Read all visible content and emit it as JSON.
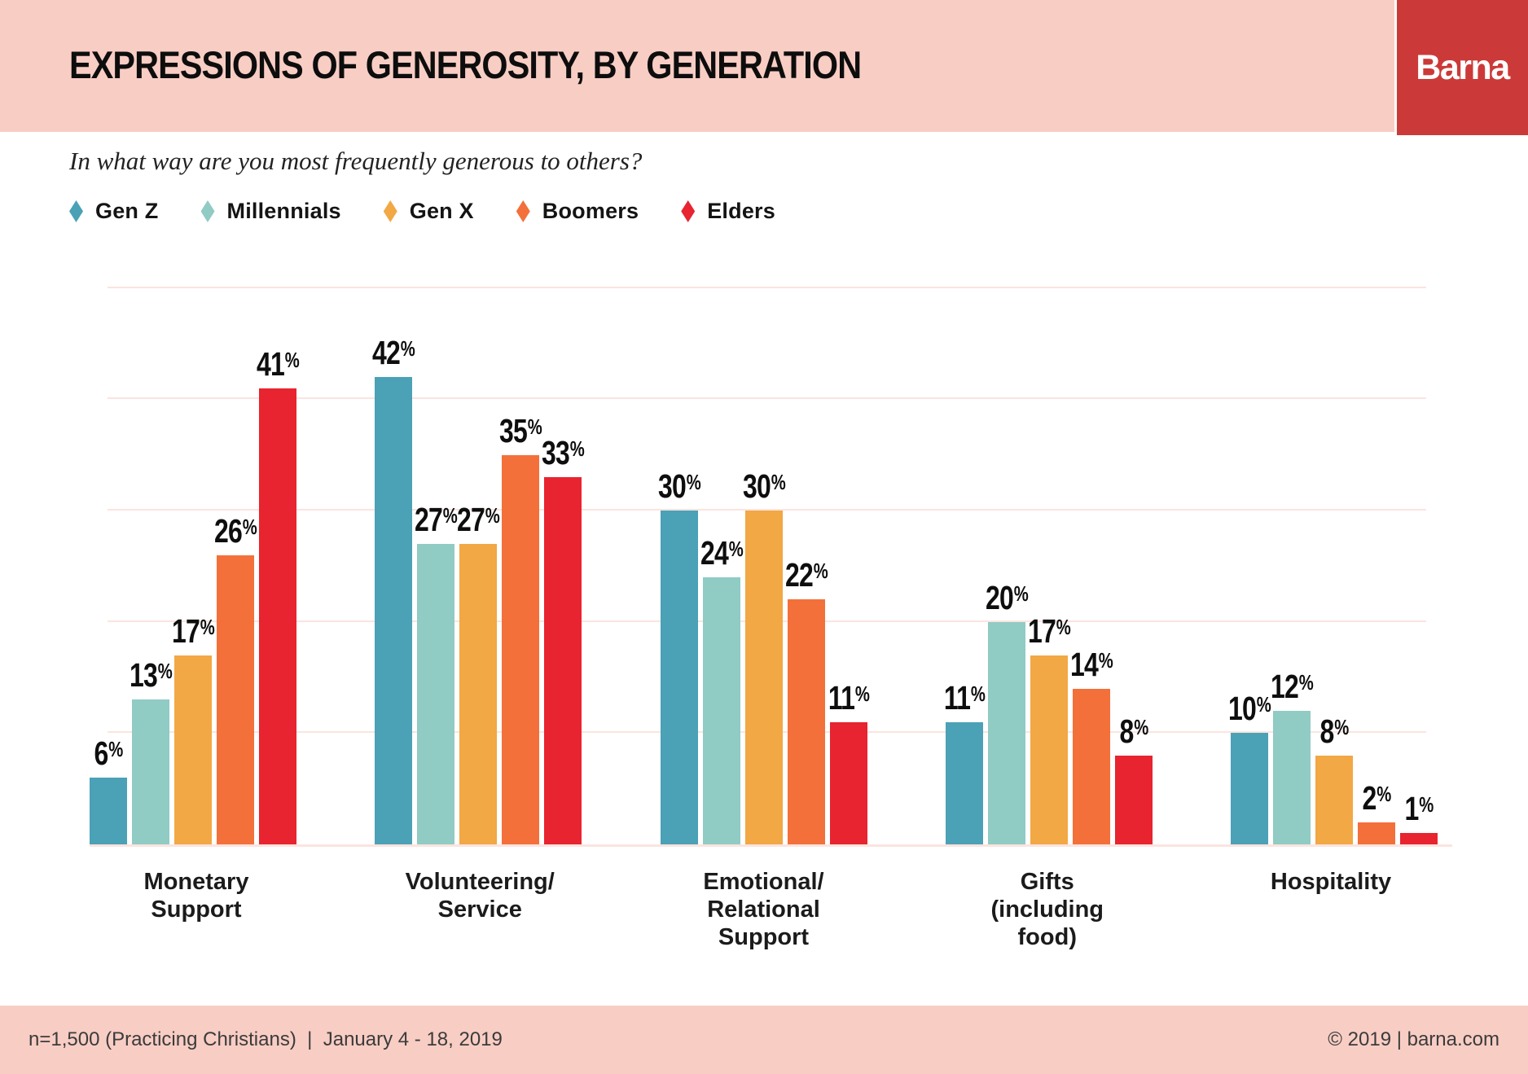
{
  "header": {
    "title": "EXPRESSIONS OF GENEROSITY, BY GENERATION",
    "logo_text": "Barna"
  },
  "question": "In what way are you most frequently generous to others?",
  "chart_data": {
    "type": "bar",
    "title": "EXPRESSIONS OF GENEROSITY, BY GENERATION",
    "categories": [
      "Monetary\nSupport",
      "Volunteering/\nService",
      "Emotional/\nRelational\nSupport",
      "Gifts\n(including\nfood)",
      "Hospitality"
    ],
    "series": [
      {
        "name": "Gen Z",
        "color": "#4BA1B6",
        "values": [
          6,
          42,
          30,
          11,
          10
        ]
      },
      {
        "name": "Millennials",
        "color": "#90CBC4",
        "values": [
          13,
          27,
          24,
          20,
          12
        ]
      },
      {
        "name": "Gen X",
        "color": "#F2A844",
        "values": [
          17,
          27,
          30,
          17,
          8
        ]
      },
      {
        "name": "Boomers",
        "color": "#F3703B",
        "values": [
          26,
          35,
          22,
          14,
          2
        ]
      },
      {
        "name": "Elders",
        "color": "#E7242F",
        "values": [
          41,
          33,
          11,
          8,
          1
        ]
      }
    ],
    "value_suffix": "%",
    "xlabel": "",
    "ylabel": "",
    "ylim": [
      0,
      50
    ],
    "gridline_step": 10,
    "grid": true,
    "legend_position": "top-left"
  },
  "footer": {
    "left": "n=1,500 (Practicing Christians)  |  January 4 - 18, 2019",
    "right": "© 2019 | barna.com"
  },
  "colors": {
    "band_pink": "#F8CDC4",
    "logo_red": "#CB3A38",
    "gridline_pink": "#FBE4DF",
    "footer_text": "#3B3B3B"
  }
}
